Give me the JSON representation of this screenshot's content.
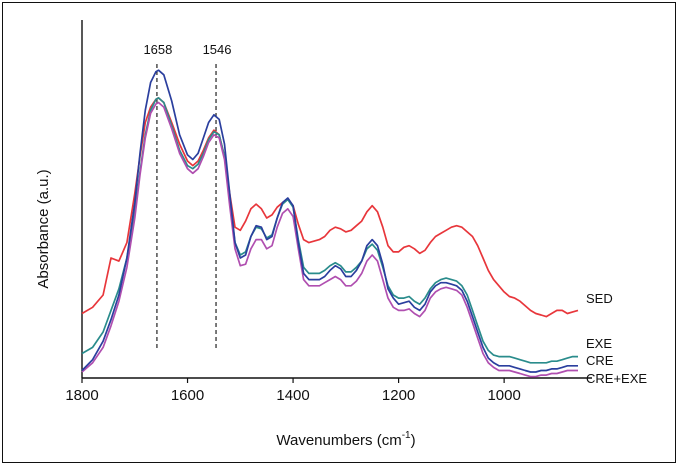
{
  "chart_data": {
    "type": "line",
    "xlabel": "Wavenumbers (cm",
    "xlabel_sup": "-1",
    "xlabel_suffix": ")",
    "ylabel": "Absorbance (a.u.)",
    "x_reversed": true,
    "xlim": [
      1800,
      860
    ],
    "ylim": [
      0,
      1
    ],
    "x_ticks": [
      1800,
      1600,
      1400,
      1200,
      1000
    ],
    "x_tick_labels": [
      "1800",
      "1600",
      "1400",
      "1200",
      "1000"
    ],
    "y_ticks_shown": false,
    "grid": false,
    "annotations": [
      {
        "label": "1658",
        "x": 1658,
        "style": "dashed-vertical"
      },
      {
        "label": "1546",
        "x": 1546,
        "style": "dashed-vertical"
      }
    ],
    "series": [
      {
        "name": "SED",
        "color": "#e8363b",
        "x": [
          1800,
          1780,
          1760,
          1745,
          1730,
          1715,
          1700,
          1690,
          1680,
          1670,
          1660,
          1655,
          1645,
          1630,
          1615,
          1600,
          1590,
          1580,
          1570,
          1560,
          1550,
          1540,
          1530,
          1520,
          1510,
          1500,
          1490,
          1480,
          1470,
          1460,
          1450,
          1440,
          1430,
          1420,
          1410,
          1400,
          1390,
          1380,
          1370,
          1360,
          1350,
          1340,
          1330,
          1320,
          1310,
          1300,
          1290,
          1280,
          1270,
          1260,
          1250,
          1240,
          1230,
          1220,
          1210,
          1200,
          1190,
          1180,
          1170,
          1160,
          1150,
          1140,
          1130,
          1120,
          1110,
          1100,
          1090,
          1080,
          1070,
          1060,
          1050,
          1040,
          1030,
          1020,
          1010,
          1000,
          990,
          980,
          970,
          960,
          950,
          940,
          930,
          920,
          910,
          900,
          890,
          880,
          870,
          860
        ],
        "y": [
          0.19,
          0.21,
          0.25,
          0.37,
          0.36,
          0.42,
          0.58,
          0.7,
          0.81,
          0.86,
          0.885,
          0.89,
          0.875,
          0.81,
          0.74,
          0.685,
          0.67,
          0.685,
          0.72,
          0.76,
          0.785,
          0.77,
          0.7,
          0.58,
          0.47,
          0.46,
          0.49,
          0.53,
          0.545,
          0.53,
          0.5,
          0.51,
          0.535,
          0.55,
          0.56,
          0.54,
          0.48,
          0.43,
          0.42,
          0.425,
          0.43,
          0.44,
          0.46,
          0.47,
          0.465,
          0.455,
          0.46,
          0.475,
          0.49,
          0.52,
          0.54,
          0.52,
          0.47,
          0.41,
          0.39,
          0.39,
          0.405,
          0.41,
          0.4,
          0.385,
          0.395,
          0.42,
          0.44,
          0.45,
          0.46,
          0.47,
          0.475,
          0.47,
          0.455,
          0.44,
          0.41,
          0.37,
          0.33,
          0.3,
          0.28,
          0.26,
          0.245,
          0.24,
          0.23,
          0.215,
          0.2,
          0.19,
          0.185,
          0.18,
          0.19,
          0.2,
          0.2,
          0.19,
          0.195,
          0.2
        ]
      },
      {
        "name": "EXE",
        "color": "#2b3f9e",
        "x": [
          1800,
          1780,
          1760,
          1745,
          1730,
          1715,
          1700,
          1690,
          1680,
          1670,
          1660,
          1655,
          1645,
          1630,
          1615,
          1600,
          1590,
          1580,
          1570,
          1560,
          1550,
          1540,
          1530,
          1520,
          1510,
          1500,
          1490,
          1480,
          1470,
          1460,
          1450,
          1440,
          1430,
          1420,
          1410,
          1400,
          1390,
          1380,
          1370,
          1360,
          1350,
          1340,
          1330,
          1320,
          1310,
          1300,
          1290,
          1280,
          1270,
          1260,
          1250,
          1240,
          1230,
          1220,
          1210,
          1200,
          1190,
          1180,
          1170,
          1160,
          1150,
          1140,
          1130,
          1120,
          1110,
          1100,
          1090,
          1080,
          1070,
          1060,
          1050,
          1040,
          1030,
          1020,
          1010,
          1000,
          990,
          980,
          970,
          960,
          950,
          940,
          930,
          920,
          910,
          900,
          890,
          880,
          870,
          860
        ],
        "y": [
          0.005,
          0.04,
          0.1,
          0.17,
          0.25,
          0.37,
          0.55,
          0.71,
          0.85,
          0.94,
          0.975,
          0.98,
          0.965,
          0.88,
          0.77,
          0.705,
          0.69,
          0.71,
          0.76,
          0.81,
          0.835,
          0.82,
          0.74,
          0.58,
          0.42,
          0.37,
          0.38,
          0.44,
          0.475,
          0.47,
          0.43,
          0.44,
          0.5,
          0.55,
          0.565,
          0.54,
          0.42,
          0.32,
          0.3,
          0.3,
          0.3,
          0.31,
          0.33,
          0.345,
          0.335,
          0.31,
          0.31,
          0.33,
          0.36,
          0.41,
          0.43,
          0.41,
          0.35,
          0.27,
          0.24,
          0.22,
          0.225,
          0.23,
          0.21,
          0.2,
          0.22,
          0.26,
          0.28,
          0.29,
          0.29,
          0.285,
          0.28,
          0.265,
          0.23,
          0.18,
          0.13,
          0.08,
          0.045,
          0.03,
          0.02,
          0.02,
          0.02,
          0.015,
          0.01,
          0.005,
          0.0,
          0.0,
          0.005,
          0.005,
          0.01,
          0.01,
          0.015,
          0.02,
          0.02,
          0.02
        ]
      },
      {
        "name": "CRE",
        "color": "#2a8c8c",
        "x": [
          1800,
          1780,
          1760,
          1745,
          1730,
          1715,
          1700,
          1690,
          1680,
          1670,
          1660,
          1655,
          1645,
          1630,
          1615,
          1600,
          1590,
          1580,
          1570,
          1560,
          1550,
          1540,
          1530,
          1520,
          1510,
          1500,
          1490,
          1480,
          1470,
          1460,
          1450,
          1440,
          1430,
          1420,
          1410,
          1400,
          1390,
          1380,
          1370,
          1360,
          1350,
          1340,
          1330,
          1320,
          1310,
          1300,
          1290,
          1280,
          1270,
          1260,
          1250,
          1240,
          1230,
          1220,
          1210,
          1200,
          1190,
          1180,
          1170,
          1160,
          1150,
          1140,
          1130,
          1120,
          1110,
          1100,
          1090,
          1080,
          1070,
          1060,
          1050,
          1040,
          1030,
          1020,
          1010,
          1000,
          990,
          980,
          970,
          960,
          950,
          940,
          930,
          920,
          910,
          900,
          890,
          880,
          870,
          860
        ],
        "y": [
          0.06,
          0.08,
          0.13,
          0.2,
          0.27,
          0.37,
          0.52,
          0.65,
          0.77,
          0.85,
          0.885,
          0.89,
          0.875,
          0.8,
          0.72,
          0.67,
          0.66,
          0.675,
          0.71,
          0.755,
          0.78,
          0.77,
          0.7,
          0.56,
          0.42,
          0.38,
          0.39,
          0.44,
          0.47,
          0.465,
          0.435,
          0.445,
          0.5,
          0.545,
          0.56,
          0.535,
          0.43,
          0.34,
          0.32,
          0.32,
          0.32,
          0.33,
          0.345,
          0.355,
          0.345,
          0.325,
          0.325,
          0.34,
          0.36,
          0.4,
          0.415,
          0.395,
          0.34,
          0.28,
          0.25,
          0.24,
          0.24,
          0.245,
          0.23,
          0.22,
          0.24,
          0.27,
          0.29,
          0.3,
          0.305,
          0.3,
          0.295,
          0.28,
          0.25,
          0.2,
          0.15,
          0.1,
          0.07,
          0.055,
          0.05,
          0.05,
          0.05,
          0.045,
          0.04,
          0.035,
          0.03,
          0.03,
          0.03,
          0.03,
          0.035,
          0.035,
          0.04,
          0.045,
          0.05,
          0.05
        ]
      },
      {
        "name": "CRE+EXE",
        "color": "#b04fb0",
        "x": [
          1800,
          1780,
          1760,
          1745,
          1730,
          1715,
          1700,
          1690,
          1680,
          1670,
          1660,
          1655,
          1645,
          1630,
          1615,
          1600,
          1590,
          1580,
          1570,
          1560,
          1550,
          1540,
          1530,
          1520,
          1510,
          1500,
          1490,
          1480,
          1470,
          1460,
          1450,
          1440,
          1430,
          1420,
          1410,
          1400,
          1390,
          1380,
          1370,
          1360,
          1350,
          1340,
          1330,
          1320,
          1310,
          1300,
          1290,
          1280,
          1270,
          1260,
          1250,
          1240,
          1230,
          1220,
          1210,
          1200,
          1190,
          1180,
          1170,
          1160,
          1150,
          1140,
          1130,
          1120,
          1110,
          1100,
          1090,
          1080,
          1070,
          1060,
          1050,
          1040,
          1030,
          1020,
          1010,
          1000,
          990,
          980,
          970,
          960,
          950,
          940,
          930,
          920,
          910,
          900,
          890,
          880,
          870,
          860
        ],
        "y": [
          0.0,
          0.03,
          0.08,
          0.15,
          0.23,
          0.34,
          0.5,
          0.64,
          0.76,
          0.84,
          0.87,
          0.875,
          0.86,
          0.79,
          0.71,
          0.66,
          0.645,
          0.66,
          0.7,
          0.745,
          0.77,
          0.76,
          0.69,
          0.54,
          0.4,
          0.345,
          0.35,
          0.4,
          0.43,
          0.43,
          0.4,
          0.41,
          0.47,
          0.515,
          0.53,
          0.505,
          0.4,
          0.3,
          0.28,
          0.28,
          0.28,
          0.29,
          0.3,
          0.31,
          0.3,
          0.28,
          0.28,
          0.295,
          0.32,
          0.36,
          0.38,
          0.36,
          0.3,
          0.24,
          0.21,
          0.2,
          0.2,
          0.205,
          0.19,
          0.18,
          0.2,
          0.24,
          0.26,
          0.27,
          0.275,
          0.27,
          0.265,
          0.25,
          0.21,
          0.16,
          0.11,
          0.06,
          0.03,
          0.015,
          0.005,
          0.005,
          0.005,
          0.0,
          -0.005,
          -0.01,
          -0.015,
          -0.015,
          -0.01,
          -0.01,
          -0.005,
          -0.005,
          0.0,
          0.005,
          0.005,
          0.005
        ]
      }
    ]
  }
}
